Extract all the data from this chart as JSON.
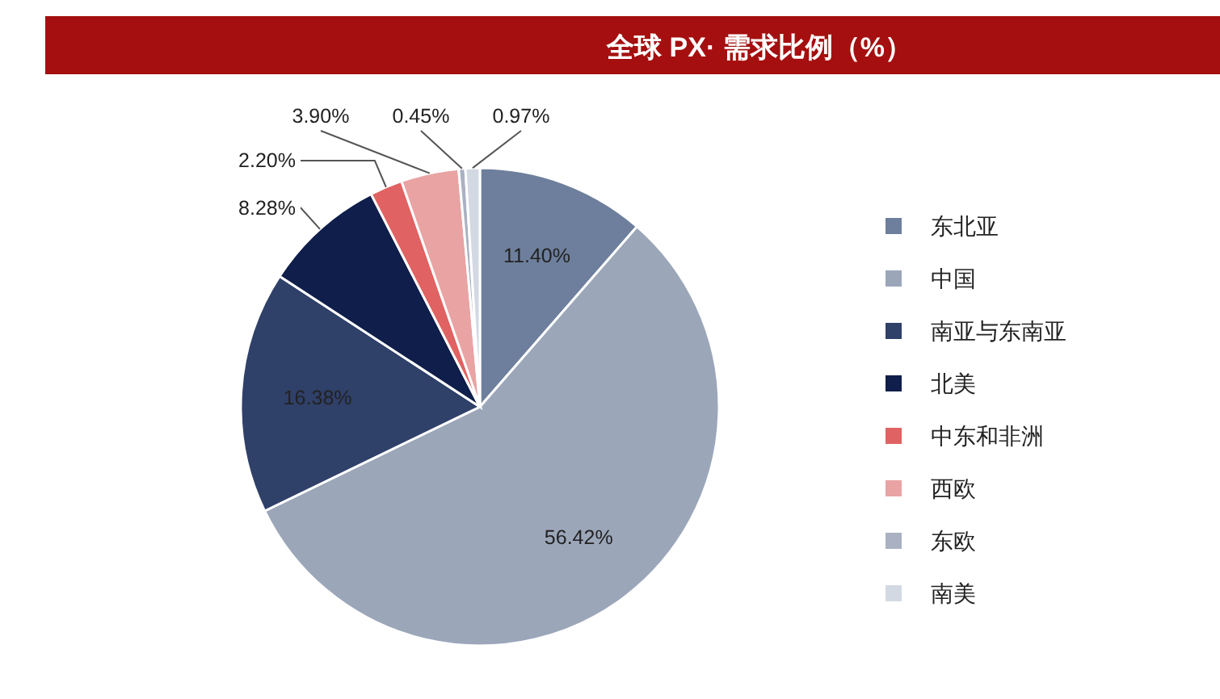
{
  "chart_data": {
    "type": "pie",
    "title": "全球 PX· 需求比例（%）",
    "categories": [
      "东北亚",
      "中国",
      "南亚与东南亚",
      "北美",
      "中东和非洲",
      "西欧",
      "东欧",
      "南美"
    ],
    "values": [
      11.4,
      56.42,
      16.38,
      8.28,
      2.2,
      3.9,
      0.45,
      0.97
    ],
    "value_labels": [
      "11.40%",
      "56.42%",
      "16.38%",
      "8.28%",
      "2.20%",
      "3.90%",
      "0.45%",
      "0.97%"
    ],
    "colors": [
      "#6d7f9c",
      "#9ba6b9",
      "#2f4069",
      "#0f1e4a",
      "#e06262",
      "#e9a3a3",
      "#a9b1c2",
      "#d3d9e3"
    ],
    "legend": "right"
  }
}
